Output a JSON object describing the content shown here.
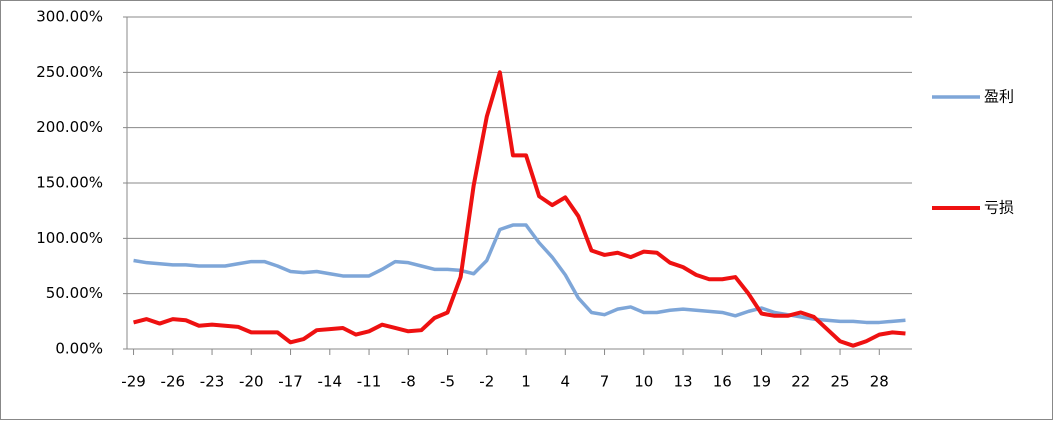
{
  "chart_data": {
    "type": "line",
    "x": [
      -29,
      -28,
      -27,
      -26,
      -25,
      -24,
      -23,
      -22,
      -21,
      -20,
      -19,
      -18,
      -17,
      -16,
      -15,
      -14,
      -13,
      -12,
      -11,
      -10,
      -9,
      -8,
      -7,
      -6,
      -5,
      -4,
      -3,
      -2,
      -1,
      0,
      1,
      2,
      3,
      4,
      5,
      6,
      7,
      8,
      9,
      10,
      11,
      12,
      13,
      14,
      15,
      16,
      17,
      18,
      19,
      20,
      21,
      22,
      23,
      24,
      25,
      26,
      27,
      28,
      29,
      30
    ],
    "xlim": [
      -29.5,
      30.5
    ],
    "xticks": [
      -29,
      -26,
      -23,
      -20,
      -17,
      -14,
      -11,
      -8,
      -5,
      -2,
      1,
      4,
      7,
      10,
      13,
      16,
      19,
      22,
      25,
      28
    ],
    "ylim": [
      0,
      300
    ],
    "yticks": [
      {
        "value": 0,
        "label": "0.00%"
      },
      {
        "value": 50,
        "label": "50.00%"
      },
      {
        "value": 100,
        "label": "100.00%"
      },
      {
        "value": 150,
        "label": "150.00%"
      },
      {
        "value": 200,
        "label": "200.00%"
      },
      {
        "value": 250,
        "label": "250.00%"
      },
      {
        "value": 300,
        "label": "300.00%"
      }
    ],
    "grid": true,
    "legend": "right",
    "series": [
      {
        "name": "盈利",
        "color": "#7ea6d8",
        "values": [
          80,
          78,
          77,
          76,
          76,
          75,
          75,
          75,
          77,
          79,
          79,
          75,
          70,
          69,
          70,
          68,
          66,
          66,
          66,
          72,
          79,
          78,
          75,
          72,
          72,
          71,
          68,
          80,
          108,
          112,
          112,
          96,
          83,
          67,
          46,
          33,
          31,
          36,
          38,
          33,
          33,
          35,
          36,
          35,
          34,
          33,
          30,
          34,
          37,
          33,
          31,
          29,
          27,
          26,
          25,
          25,
          24,
          24,
          25,
          26
        ]
      },
      {
        "name": "亏损",
        "color": "#ee1111",
        "values": [
          24,
          27,
          23,
          27,
          26,
          21,
          22,
          21,
          20,
          15,
          15,
          15,
          6,
          9,
          17,
          18,
          19,
          13,
          16,
          22,
          19,
          16,
          17,
          28,
          33,
          65,
          148,
          210,
          250,
          175,
          175,
          138,
          130,
          137,
          120,
          89,
          85,
          87,
          83,
          88,
          87,
          78,
          74,
          67,
          63,
          63,
          65,
          50,
          32,
          30,
          30,
          33,
          29,
          18,
          7,
          3,
          7,
          13,
          15,
          14
        ]
      }
    ]
  }
}
